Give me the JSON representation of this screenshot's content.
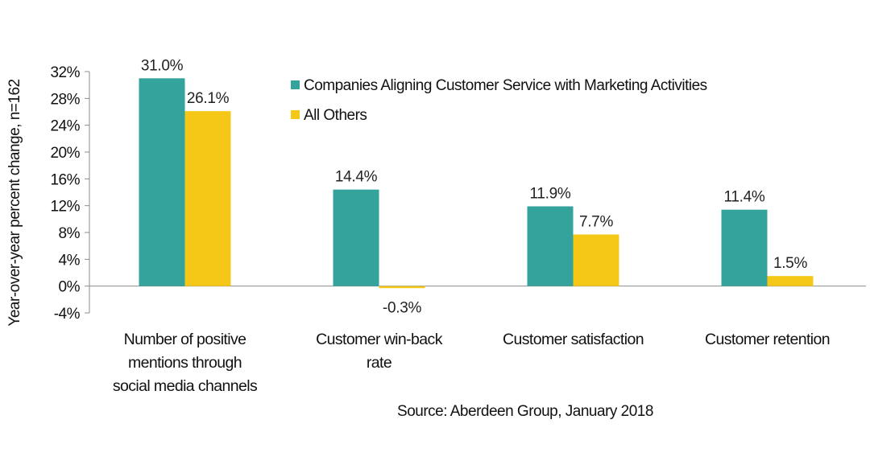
{
  "chart_data": {
    "type": "bar",
    "title": "",
    "xlabel": "",
    "ylabel": "Year-over-year percent change, n=162",
    "ylim": [
      -4,
      32
    ],
    "yticks": [
      "32%",
      "28%",
      "24%",
      "20%",
      "16%",
      "12%",
      "8%",
      "4%",
      "0%",
      "-4%"
    ],
    "ytick_values": [
      32,
      28,
      24,
      20,
      16,
      12,
      8,
      4,
      0,
      -4
    ],
    "grid": false,
    "legend_position": "top-right",
    "categories": [
      [
        "Number of positive",
        "mentions through",
        "social media channels"
      ],
      [
        "Customer win-back",
        "rate"
      ],
      [
        "Customer satisfaction"
      ],
      [
        "Customer retention"
      ]
    ],
    "series": [
      {
        "name": "Companies Aligning Customer Service with Marketing Activities",
        "color": "#33A39C",
        "values": [
          31.0,
          14.4,
          11.9,
          11.4
        ],
        "labels": [
          "31.0%",
          "14.4%",
          "11.9%",
          "11.4%"
        ]
      },
      {
        "name": "All Others",
        "color": "#F5C818",
        "values": [
          26.1,
          -0.3,
          7.7,
          1.5
        ],
        "labels": [
          "26.1%",
          "-0.3%",
          "7.7%",
          "1.5%"
        ]
      }
    ],
    "source": "Source: Aberdeen Group, January 2018"
  }
}
